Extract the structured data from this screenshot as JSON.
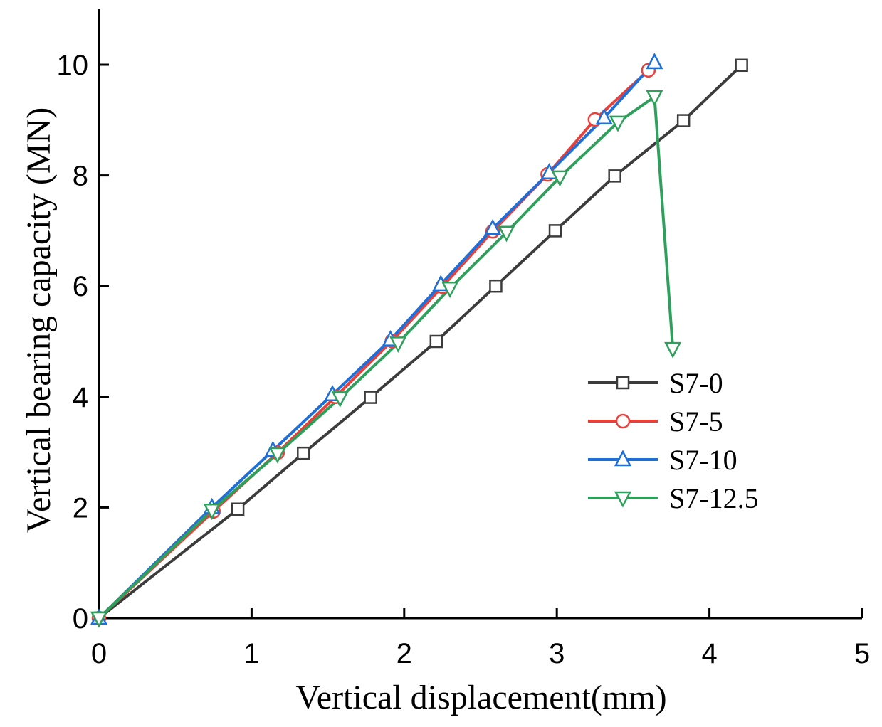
{
  "chart_data": {
    "type": "line",
    "title": "",
    "xlabel": "Vertical displacement(mm)",
    "ylabel": "Vertical bearing capacity (MN)",
    "xlim": [
      0,
      5
    ],
    "ylim": [
      0,
      11
    ],
    "xticks": [
      0,
      1,
      2,
      3,
      4,
      5
    ],
    "yticks": [
      0,
      2,
      4,
      6,
      8,
      10
    ],
    "xtick_labels": [
      "0",
      "1",
      "2",
      "3",
      "4",
      "5"
    ],
    "ytick_labels": [
      "0",
      "2",
      "4",
      "6",
      "8",
      "10"
    ],
    "grid": false,
    "legend_position": "middle-right",
    "series": [
      {
        "name": "S7-0",
        "color": "#3c3c3c",
        "marker": "square",
        "x": [
          0,
          0.91,
          1.34,
          1.78,
          2.21,
          2.6,
          2.99,
          3.38,
          3.83,
          4.21
        ],
        "y": [
          0,
          1.97,
          2.98,
          3.99,
          5.0,
          6.0,
          7.0,
          7.99,
          8.99,
          9.99
        ]
      },
      {
        "name": "S7-5",
        "color": "#e8413c",
        "marker": "circle",
        "x": [
          0,
          0.75,
          1.17,
          1.55,
          1.92,
          2.25,
          2.58,
          2.94,
          3.25,
          3.6
        ],
        "y": [
          0,
          1.93,
          2.99,
          4.0,
          5.01,
          5.99,
          6.99,
          8.02,
          9.01,
          9.9
        ]
      },
      {
        "name": "S7-10",
        "color": "#1e6fd9",
        "marker": "triangle-up",
        "x": [
          0,
          0.74,
          1.14,
          1.53,
          1.91,
          2.24,
          2.58,
          2.95,
          3.31,
          3.64
        ],
        "y": [
          0,
          2.0,
          3.03,
          4.04,
          5.03,
          6.03,
          7.04,
          8.05,
          9.04,
          10.04
        ]
      },
      {
        "name": "S7-12.5",
        "color": "#2fa05c",
        "marker": "triangle-down",
        "x": [
          0,
          0.74,
          1.17,
          1.58,
          1.96,
          2.3,
          2.67,
          3.02,
          3.4,
          3.64,
          3.76
        ],
        "y": [
          0,
          1.95,
          2.97,
          3.98,
          4.97,
          5.96,
          6.97,
          7.97,
          8.96,
          9.42,
          4.87
        ]
      }
    ]
  }
}
